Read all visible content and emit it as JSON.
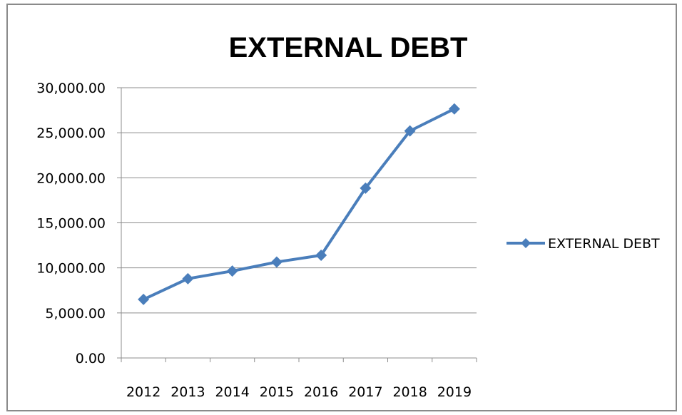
{
  "chart_data": {
    "type": "line",
    "title": "EXTERNAL DEBT",
    "categories": [
      "2012",
      "2013",
      "2014",
      "2015",
      "2016",
      "2017",
      "2018",
      "2019"
    ],
    "series": [
      {
        "name": "EXTERNAL DEBT",
        "values": [
          6500,
          8800,
          9650,
          10650,
          11400,
          18850,
          25200,
          27650
        ],
        "color": "#4a7ebb",
        "marker": "diamond"
      }
    ],
    "ylim": [
      0,
      30000
    ],
    "yticks": [
      "0.00",
      "5,000.00",
      "10,000.00",
      "15,000.00",
      "20,000.00",
      "25,000.00",
      "30,000.00"
    ],
    "grid": true,
    "legend": "right"
  }
}
